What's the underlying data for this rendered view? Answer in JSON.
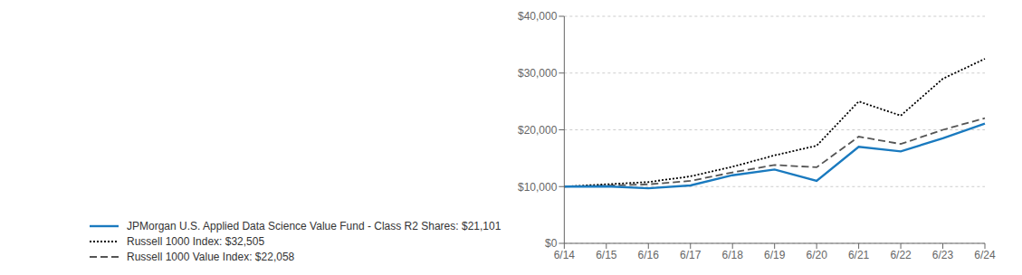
{
  "chart_data": {
    "type": "line",
    "categories": [
      "6/14",
      "6/15",
      "6/16",
      "6/17",
      "6/18",
      "6/19",
      "6/20",
      "6/21",
      "6/22",
      "6/23",
      "6/24"
    ],
    "series": [
      {
        "name": "JPMorgan U.S. Applied Data Science Value Fund - Class R2 Shares: $21,101",
        "color": "#1a7abf",
        "line_style": "solid",
        "values": [
          10000,
          10050,
          9700,
          10200,
          12000,
          13000,
          11000,
          17000,
          16200,
          18500,
          21101
        ]
      },
      {
        "name": "Russell 1000  Index: $32,505",
        "color": "#000000",
        "line_style": "dotted",
        "values": [
          10000,
          10400,
          10800,
          11800,
          13500,
          15500,
          17200,
          25000,
          22500,
          29000,
          32505
        ]
      },
      {
        "name": "Russell 1000 Value Index: $22,058",
        "color": "#555555",
        "line_style": "dashed",
        "values": [
          10000,
          10150,
          10400,
          11000,
          12500,
          13800,
          13400,
          18800,
          17500,
          20000,
          22058
        ]
      }
    ],
    "ylim": [
      0,
      40000
    ],
    "yticks": [
      {
        "value": 0,
        "label": "$0"
      },
      {
        "value": 10000,
        "label": "$10,000"
      },
      {
        "value": 20000,
        "label": "$20,000"
      },
      {
        "value": 30000,
        "label": "$30,000"
      },
      {
        "value": 40000,
        "label": "$40,000"
      }
    ],
    "grid": true,
    "legend": "bottom"
  }
}
